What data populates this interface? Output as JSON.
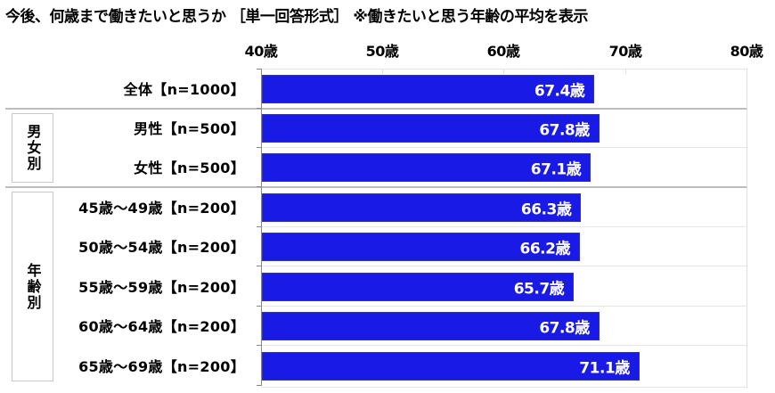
{
  "title": "今後、何歳まで働きたいと思うか ［単一回答形式］ ※働きたいと思う年齢の平均を表示",
  "axis": {
    "ticks": [
      "40歳",
      "50歳",
      "60歳",
      "70歳",
      "80歳"
    ]
  },
  "groups": [
    {
      "label": "男女別"
    },
    {
      "label": "年齢別"
    }
  ],
  "rows": [
    {
      "label": "全体【n=1000】",
      "value": 67.4,
      "value_label": "67.4歳"
    },
    {
      "label": "男性【n=500】",
      "value": 67.8,
      "value_label": "67.8歳"
    },
    {
      "label": "女性【n=500】",
      "value": 67.1,
      "value_label": "67.1歳"
    },
    {
      "label": "45歳～49歳【n=200】",
      "value": 66.3,
      "value_label": "66.3歳"
    },
    {
      "label": "50歳～54歳【n=200】",
      "value": 66.2,
      "value_label": "66.2歳"
    },
    {
      "label": "55歳～59歳【n=200】",
      "value": 65.7,
      "value_label": "65.7歳"
    },
    {
      "label": "60歳～64歳【n=200】",
      "value": 67.8,
      "value_label": "67.8歳"
    },
    {
      "label": "65歳～69歳【n=200】",
      "value": 71.1,
      "value_label": "71.1歳"
    }
  ],
  "colors": {
    "bar": "#1a1ae6",
    "bar_text": "#ffffff"
  },
  "chart_data": {
    "type": "bar",
    "orientation": "horizontal",
    "title": "今後、何歳まで働きたいと思うか ［単一回答形式］ ※働きたいと思う年齢の平均を表示",
    "categories": [
      "全体【n=1000】",
      "男性【n=500】",
      "女性【n=500】",
      "45歳～49歳【n=200】",
      "50歳～54歳【n=200】",
      "55歳～59歳【n=200】",
      "60歳～64歳【n=200】",
      "65歳～69歳【n=200】"
    ],
    "values": [
      67.4,
      67.8,
      67.1,
      66.3,
      66.2,
      65.7,
      67.8,
      71.1
    ],
    "value_labels": [
      "67.4歳",
      "67.8歳",
      "67.1歳",
      "66.3歳",
      "66.2歳",
      "65.7歳",
      "67.8歳",
      "71.1歳"
    ],
    "groups": {
      "男女別": [
        "男性【n=500】",
        "女性【n=500】"
      ],
      "年齢別": [
        "45歳～49歳【n=200】",
        "50歳～54歳【n=200】",
        "55歳～59歳【n=200】",
        "60歳～64歳【n=200】",
        "65歳～69歳【n=200】"
      ]
    },
    "xlabel": "",
    "ylabel": "",
    "xlim": [
      40,
      80
    ],
    "xticks": [
      "40歳",
      "50歳",
      "60歳",
      "70歳",
      "80歳"
    ],
    "grid": false,
    "legend": "none"
  }
}
